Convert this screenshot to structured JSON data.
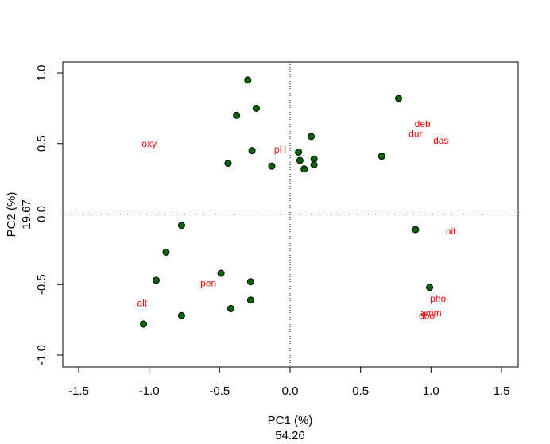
{
  "chart_data": {
    "type": "scatter",
    "title": "",
    "xlabel": "PC1 (%)",
    "xlabel_value": "54.26",
    "ylabel": "PC2 (%)",
    "ylabel_value": "19.67",
    "xlim": [
      -1.5,
      1.5
    ],
    "ylim": [
      -1.0,
      1.0
    ],
    "xticks": [
      -1.5,
      -1.0,
      -0.5,
      0.0,
      0.5,
      1.0,
      1.5
    ],
    "yticks": [
      -1.0,
      -0.5,
      0.0,
      0.5,
      1.0
    ],
    "xtick_labels": [
      "-1.5",
      "-1.0",
      "-0.5",
      "0.0",
      "0.5",
      "1.0",
      "1.5"
    ],
    "ytick_labels": [
      "-1.0",
      "-0.5",
      "0.0",
      "0.5",
      "1.0"
    ],
    "reference_lines": {
      "x": 0,
      "y": 0,
      "style": "dotted"
    },
    "grid": false,
    "point_color": "#006400",
    "label_color": "#ff0000",
    "points": [
      {
        "x": -0.3,
        "y": 0.95
      },
      {
        "x": -0.24,
        "y": 0.75
      },
      {
        "x": -0.38,
        "y": 0.7
      },
      {
        "x": -0.27,
        "y": 0.45
      },
      {
        "x": -0.44,
        "y": 0.36
      },
      {
        "x": -0.13,
        "y": 0.34
      },
      {
        "x": 0.15,
        "y": 0.55
      },
      {
        "x": 0.06,
        "y": 0.44
      },
      {
        "x": 0.07,
        "y": 0.38
      },
      {
        "x": 0.1,
        "y": 0.32
      },
      {
        "x": 0.17,
        "y": 0.39
      },
      {
        "x": 0.17,
        "y": 0.35
      },
      {
        "x": 0.65,
        "y": 0.41
      },
      {
        "x": 0.77,
        "y": 0.82
      },
      {
        "x": 0.89,
        "y": -0.11
      },
      {
        "x": 0.99,
        "y": -0.52
      },
      {
        "x": -0.77,
        "y": -0.08
      },
      {
        "x": -0.88,
        "y": -0.27
      },
      {
        "x": -0.95,
        "y": -0.47
      },
      {
        "x": -0.49,
        "y": -0.42
      },
      {
        "x": -0.28,
        "y": -0.48
      },
      {
        "x": -0.28,
        "y": -0.61
      },
      {
        "x": -0.42,
        "y": -0.67
      },
      {
        "x": -0.77,
        "y": -0.72
      },
      {
        "x": -1.04,
        "y": -0.78
      }
    ],
    "variable_labels": [
      {
        "text": "oxy",
        "x": -1.0,
        "y": 0.5
      },
      {
        "text": "pH",
        "x": -0.07,
        "y": 0.46
      },
      {
        "text": "deb",
        "x": 0.94,
        "y": 0.64
      },
      {
        "text": "dur",
        "x": 0.89,
        "y": 0.57
      },
      {
        "text": "das",
        "x": 1.07,
        "y": 0.52
      },
      {
        "text": "nit",
        "x": 1.14,
        "y": -0.12
      },
      {
        "text": "pen",
        "x": -0.58,
        "y": -0.49
      },
      {
        "text": "alt",
        "x": -1.05,
        "y": -0.63
      },
      {
        "text": "pho",
        "x": 1.05,
        "y": -0.6
      },
      {
        "text": "amm",
        "x": 1.0,
        "y": -0.7
      },
      {
        "text": "dbo",
        "x": 0.97,
        "y": -0.72
      }
    ]
  }
}
